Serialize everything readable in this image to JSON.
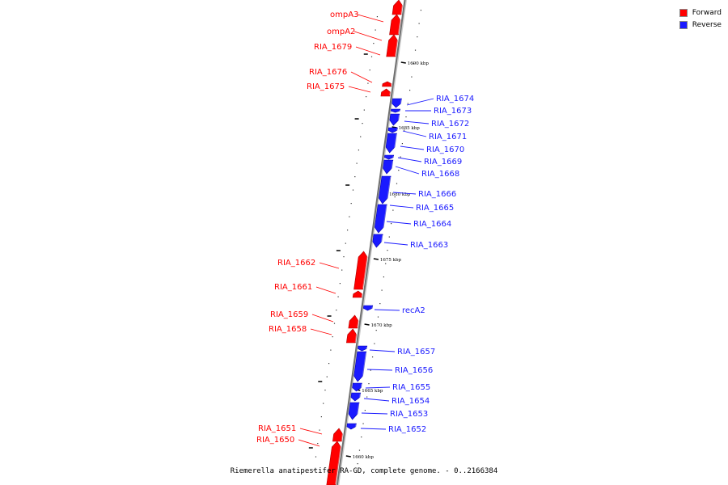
{
  "legend": {
    "forward": {
      "label": "Forward",
      "color": "#ff0000"
    },
    "reverse": {
      "label": "Reverse",
      "color": "#1a1aff"
    }
  },
  "caption": "Riemerella anatipestifer RA-GD, complete genome. - 0..2166384",
  "ruler": [
    "1690 kbp",
    "1685 kbp",
    "1680 kbp",
    "1675 kbp",
    "1670 kbp",
    "1665 kbp",
    "1660 kbp"
  ],
  "genes": [
    {
      "name": "ompA3",
      "strand": "forward"
    },
    {
      "name": "ompA2",
      "strand": "forward"
    },
    {
      "name": "RIA_1679",
      "strand": "forward"
    },
    {
      "name": "RIA_1676",
      "strand": "forward"
    },
    {
      "name": "RIA_1675",
      "strand": "forward"
    },
    {
      "name": "RIA_1674",
      "strand": "reverse"
    },
    {
      "name": "RIA_1673",
      "strand": "reverse"
    },
    {
      "name": "RIA_1672",
      "strand": "reverse"
    },
    {
      "name": "RIA_1671",
      "strand": "reverse"
    },
    {
      "name": "RIA_1670",
      "strand": "reverse"
    },
    {
      "name": "RIA_1669",
      "strand": "reverse"
    },
    {
      "name": "RIA_1668",
      "strand": "reverse"
    },
    {
      "name": "RIA_1666",
      "strand": "reverse"
    },
    {
      "name": "RIA_1665",
      "strand": "reverse"
    },
    {
      "name": "RIA_1664",
      "strand": "reverse"
    },
    {
      "name": "RIA_1663",
      "strand": "reverse"
    },
    {
      "name": "RIA_1662",
      "strand": "forward"
    },
    {
      "name": "RIA_1661",
      "strand": "forward"
    },
    {
      "name": "recA2",
      "strand": "reverse"
    },
    {
      "name": "RIA_1659",
      "strand": "forward"
    },
    {
      "name": "RIA_1658",
      "strand": "forward"
    },
    {
      "name": "RIA_1657",
      "strand": "reverse"
    },
    {
      "name": "RIA_1656",
      "strand": "reverse"
    },
    {
      "name": "RIA_1655",
      "strand": "reverse"
    },
    {
      "name": "RIA_1654",
      "strand": "reverse"
    },
    {
      "name": "RIA_1653",
      "strand": "reverse"
    },
    {
      "name": "RIA_1652",
      "strand": "reverse"
    },
    {
      "name": "RIA_1651",
      "strand": "forward"
    },
    {
      "name": "RIA_1650",
      "strand": "forward"
    }
  ]
}
